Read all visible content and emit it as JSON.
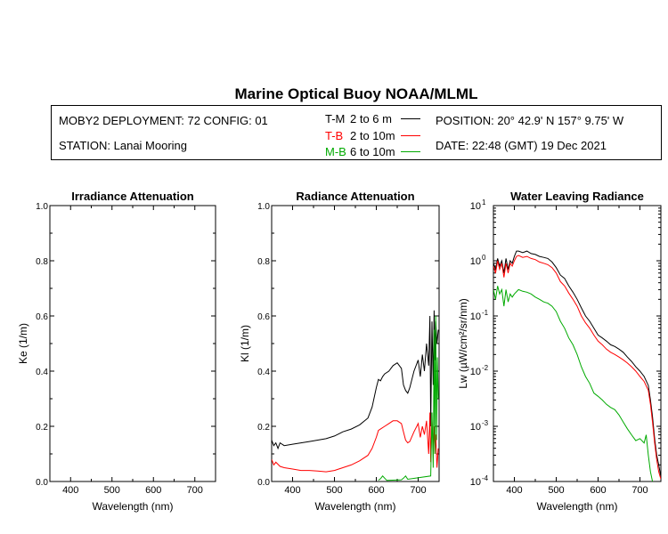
{
  "header": {
    "title": "Marine Optical Buoy NOAA/MLML",
    "deployment": "MOBY2 DEPLOYMENT: 72 CONFIG: 01",
    "station": "STATION: Lanai Mooring",
    "position": "POSITION: 20° 42.9' N   157° 9.75' W",
    "date": "DATE: 22:48 (GMT) 19 Dec 2021"
  },
  "legend": [
    {
      "code": "T-M",
      "range": "2 to 6  m",
      "color": "#000000"
    },
    {
      "code": "T-B",
      "range": "2 to 10m",
      "color": "#ff0000"
    },
    {
      "code": "M-B",
      "range": "6 to 10m",
      "color": "#00aa00"
    }
  ],
  "chart_data": [
    {
      "type": "line",
      "title": "Irradiance Attenuation",
      "xlabel": "Wavelength (nm)",
      "ylabel": "Ke  (1/m)",
      "xlim": [
        350,
        750
      ],
      "ylim": [
        0,
        1
      ],
      "x_ticks": [
        400,
        500,
        600,
        700
      ],
      "x_tick_labels": [
        "400",
        "500",
        "600",
        "700"
      ],
      "y_ticks": [
        0,
        0.2,
        0.4,
        0.6,
        0.8,
        1.0
      ],
      "y_tick_labels": [
        "0.0",
        "0.2",
        "0.4",
        "0.6",
        "0.8",
        "1.0"
      ],
      "series": []
    },
    {
      "type": "line",
      "title": "Radiance Attenuation",
      "xlabel": "Wavelength (nm)",
      "ylabel": "Kl  (1/m)",
      "xlim": [
        350,
        750
      ],
      "ylim": [
        0,
        1
      ],
      "x_ticks": [
        400,
        500,
        600,
        700
      ],
      "x_tick_labels": [
        "400",
        "500",
        "600",
        "700"
      ],
      "y_ticks": [
        0,
        0.2,
        0.4,
        0.6,
        0.8,
        1.0
      ],
      "y_tick_labels": [
        "0.0",
        "0.2",
        "0.4",
        "0.6",
        "0.8",
        "1.0"
      ],
      "series": [
        {
          "name": "T-M",
          "color": "#000000",
          "x": [
            350,
            355,
            360,
            365,
            370,
            380,
            400,
            420,
            440,
            460,
            480,
            500,
            520,
            540,
            560,
            580,
            590,
            600,
            605,
            610,
            615,
            620,
            630,
            640,
            650,
            660,
            665,
            670,
            675,
            680,
            690,
            700,
            705,
            710,
            715,
            720,
            725,
            728,
            730,
            733,
            736,
            738,
            740,
            742,
            745,
            748
          ],
          "y": [
            0.15,
            0.13,
            0.14,
            0.12,
            0.14,
            0.13,
            0.135,
            0.14,
            0.145,
            0.15,
            0.155,
            0.165,
            0.18,
            0.19,
            0.205,
            0.23,
            0.27,
            0.34,
            0.37,
            0.365,
            0.38,
            0.39,
            0.4,
            0.42,
            0.43,
            0.41,
            0.35,
            0.33,
            0.32,
            0.34,
            0.4,
            0.44,
            0.38,
            0.46,
            0.4,
            0.5,
            0.42,
            0.6,
            0.2,
            0.58,
            0.35,
            0.62,
            0.44,
            0.58,
            0.5,
            0.55
          ]
        },
        {
          "name": "T-B",
          "color": "#ff0000",
          "x": [
            350,
            355,
            360,
            370,
            380,
            400,
            420,
            440,
            460,
            480,
            500,
            520,
            540,
            560,
            580,
            590,
            600,
            605,
            610,
            620,
            630,
            640,
            650,
            660,
            665,
            670,
            675,
            680,
            690,
            700,
            705,
            710,
            715,
            720,
            725,
            728,
            730,
            733,
            736,
            738,
            740,
            742,
            745,
            748
          ],
          "y": [
            0.08,
            0.06,
            0.07,
            0.055,
            0.05,
            0.045,
            0.04,
            0.04,
            0.038,
            0.035,
            0.04,
            0.05,
            0.06,
            0.075,
            0.095,
            0.12,
            0.16,
            0.185,
            0.19,
            0.2,
            0.21,
            0.22,
            0.22,
            0.21,
            0.18,
            0.15,
            0.14,
            0.145,
            0.18,
            0.21,
            0.16,
            0.2,
            0.17,
            0.22,
            0.1,
            0.25,
            0.07,
            0.22,
            0.12,
            0.2,
            0.1,
            0.17,
            0.05,
            0.12
          ]
        },
        {
          "name": "M-B",
          "color": "#00aa00",
          "x": [
            605,
            610,
            615,
            620,
            625,
            660,
            665,
            670,
            675,
            730,
            733,
            736,
            738,
            740,
            742,
            744,
            746,
            748
          ],
          "y": [
            0.005,
            0.01,
            0.02,
            0.012,
            0.004,
            0.006,
            0.012,
            0.02,
            0.008,
            0.02,
            0.25,
            0.05,
            0.55,
            0.1,
            0.6,
            0.15,
            0.45,
            0.3
          ]
        }
      ]
    },
    {
      "type": "line",
      "title": "Water Leaving Radiance",
      "xlabel": "Wavelength (nm)",
      "ylabel": "Lw  (µW/cm²/sr/nm)",
      "y_scale": "log",
      "xlim": [
        350,
        750
      ],
      "ylim": [
        0.0001,
        10
      ],
      "x_ticks": [
        400,
        500,
        600,
        700
      ],
      "x_tick_labels": [
        "400",
        "500",
        "600",
        "700"
      ],
      "y_ticks": [
        0.0001,
        0.001,
        0.01,
        0.1,
        1,
        10
      ],
      "y_tick_labels": [
        {
          "base": "10",
          "exp": "-4"
        },
        {
          "base": "10",
          "exp": "-3"
        },
        {
          "base": "10",
          "exp": "-2"
        },
        {
          "base": "10",
          "exp": "-1"
        },
        {
          "base": "10",
          "exp": "0"
        },
        {
          "base": "10",
          "exp": "1"
        }
      ],
      "series": [
        {
          "name": "T-M",
          "color": "#000000",
          "x": [
            350,
            355,
            360,
            365,
            370,
            375,
            380,
            385,
            390,
            395,
            400,
            405,
            410,
            420,
            430,
            440,
            450,
            460,
            470,
            480,
            490,
            500,
            510,
            520,
            530,
            540,
            550,
            560,
            570,
            580,
            590,
            600,
            610,
            620,
            630,
            640,
            650,
            660,
            670,
            680,
            690,
            700,
            710,
            720,
            725,
            730,
            735,
            740,
            745,
            750
          ],
          "y": [
            0.9,
            0.7,
            1.1,
            0.8,
            1.0,
            0.6,
            1.1,
            0.7,
            1.0,
            0.9,
            1.2,
            1.5,
            1.5,
            1.4,
            1.5,
            1.35,
            1.3,
            1.2,
            1.15,
            1.1,
            0.95,
            0.75,
            0.55,
            0.48,
            0.35,
            0.27,
            0.2,
            0.14,
            0.1,
            0.08,
            0.06,
            0.045,
            0.04,
            0.035,
            0.03,
            0.028,
            0.025,
            0.022,
            0.018,
            0.015,
            0.012,
            0.01,
            0.008,
            0.0055,
            0.003,
            0.0015,
            0.0006,
            0.0003,
            0.0002,
            0.00012
          ]
        },
        {
          "name": "T-B",
          "color": "#ff0000",
          "x": [
            350,
            355,
            360,
            365,
            370,
            375,
            380,
            385,
            390,
            395,
            400,
            405,
            410,
            420,
            430,
            440,
            450,
            460,
            470,
            480,
            490,
            500,
            510,
            520,
            530,
            540,
            550,
            560,
            570,
            580,
            590,
            600,
            610,
            620,
            630,
            640,
            650,
            660,
            670,
            680,
            690,
            700,
            710,
            720,
            725,
            730,
            735,
            740,
            745,
            750
          ],
          "y": [
            0.8,
            0.6,
            1.0,
            0.7,
            0.9,
            0.5,
            0.9,
            0.6,
            0.9,
            0.8,
            1.0,
            1.2,
            1.25,
            1.15,
            1.2,
            1.1,
            1.05,
            0.95,
            0.9,
            0.85,
            0.75,
            0.6,
            0.42,
            0.35,
            0.26,
            0.2,
            0.15,
            0.1,
            0.075,
            0.06,
            0.045,
            0.035,
            0.03,
            0.025,
            0.022,
            0.02,
            0.018,
            0.016,
            0.014,
            0.012,
            0.01,
            0.008,
            0.0065,
            0.0045,
            0.0025,
            0.0012,
            0.0005,
            0.00025,
            0.00015,
            0.00011
          ]
        },
        {
          "name": "M-B",
          "color": "#00aa00",
          "x": [
            350,
            355,
            360,
            365,
            370,
            375,
            380,
            385,
            390,
            395,
            400,
            410,
            420,
            430,
            440,
            450,
            460,
            470,
            480,
            490,
            500,
            510,
            520,
            530,
            540,
            550,
            560,
            570,
            580,
            590,
            600,
            610,
            620,
            630,
            640,
            650,
            660,
            670,
            680,
            690,
            700,
            710,
            715,
            720,
            725,
            730
          ],
          "y": [
            0.3,
            0.2,
            0.35,
            0.25,
            0.3,
            0.15,
            0.3,
            0.18,
            0.25,
            0.22,
            0.25,
            0.3,
            0.28,
            0.27,
            0.25,
            0.22,
            0.2,
            0.18,
            0.17,
            0.15,
            0.12,
            0.08,
            0.06,
            0.04,
            0.03,
            0.02,
            0.012,
            0.008,
            0.006,
            0.004,
            0.0035,
            0.003,
            0.0025,
            0.0022,
            0.002,
            0.0016,
            0.0012,
            0.0009,
            0.0007,
            0.00055,
            0.0006,
            0.0005,
            0.0007,
            0.0003,
            0.00015,
            0.0001
          ]
        }
      ]
    }
  ]
}
